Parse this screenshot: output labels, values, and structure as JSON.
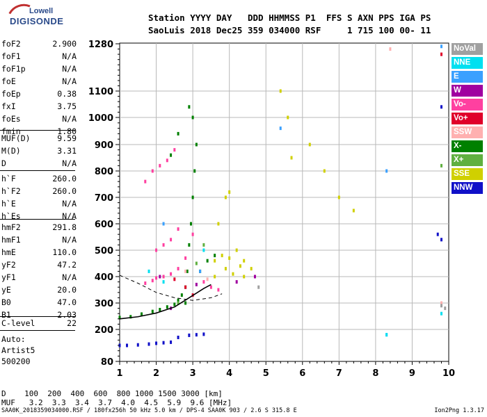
{
  "logo": {
    "line1": "Lowell",
    "line2": "DIGISONDE"
  },
  "header": {
    "row1": "Station YYYY DAY   DDD HHMMSS P1  FFS S AXN PPS IGA PS",
    "row2": "SaoLuis 2018 Dec25 359 034000 RSF     1 715 100 00- 11"
  },
  "params_a": [
    {
      "k": "foF2",
      "v": "2.900"
    },
    {
      "k": "foF1",
      "v": "N/A"
    },
    {
      "k": "foF1p",
      "v": "N/A"
    },
    {
      "k": "foE",
      "v": "N/A"
    },
    {
      "k": "foEp",
      "v": "0.38"
    },
    {
      "k": "fxI",
      "v": "3.75"
    },
    {
      "k": "foEs",
      "v": "N/A"
    },
    {
      "k": "fmin",
      "v": "1.80"
    }
  ],
  "params_b": [
    {
      "k": "MUF(D)",
      "v": "9.59"
    },
    {
      "k": "M(D)",
      "v": "3.31"
    },
    {
      "k": "D",
      "v": "N/A"
    }
  ],
  "params_c": [
    {
      "k": "h`F",
      "v": "260.0"
    },
    {
      "k": "h`F2",
      "v": "260.0"
    },
    {
      "k": "h`E",
      "v": "N/A"
    },
    {
      "k": "h`Es",
      "v": "N/A"
    }
  ],
  "params_d": [
    {
      "k": "hmF2",
      "v": "291.8"
    },
    {
      "k": "hmF1",
      "v": "N/A"
    },
    {
      "k": "hmE",
      "v": "110.0"
    },
    {
      "k": "yF2",
      "v": "47.2"
    },
    {
      "k": "yF1",
      "v": "N/A"
    },
    {
      "k": "yE",
      "v": "20.0"
    },
    {
      "k": "B0",
      "v": "47.0"
    },
    {
      "k": "B1",
      "v": "2.03"
    }
  ],
  "params_e": [
    {
      "k": "C-level",
      "v": "22"
    }
  ],
  "auto": {
    "line1": "Auto:",
    "line2": "Artist5",
    "line3": "500200"
  },
  "legend": [
    {
      "label": "NoVal",
      "color": "#a0a0a0"
    },
    {
      "label": "NNE",
      "color": "#00e0f0"
    },
    {
      "label": "E",
      "color": "#3aa0ff"
    },
    {
      "label": "W",
      "color": "#a000a0"
    },
    {
      "label": "Vo-",
      "color": "#ff40a0"
    },
    {
      "label": "Vo+",
      "color": "#e0002a"
    },
    {
      "label": "SSW",
      "color": "#ffb0b0"
    },
    {
      "label": "X-",
      "color": "#008000"
    },
    {
      "label": "X+",
      "color": "#60b040"
    },
    {
      "label": "SSE",
      "color": "#d0d000"
    },
    {
      "label": "NNW",
      "color": "#1010c8"
    }
  ],
  "dtable": {
    "row1": "D    100  200  400  600  800 1000 1500 3000 [km]",
    "row2": "MUF   3.2  3.3  3.4  3.7  4.0  4.5  5.9  9.6 [MHz]"
  },
  "footer": "SAA0K_2018359034000.RSF / 180fx256h 50 kHz 5.0 km / DPS-4 SAA0K 903 / 2.6 S 315.8 E",
  "version": "Ion2Png 1.3.17",
  "chart_data": {
    "type": "scatter",
    "title": "",
    "xlabel": "",
    "ylabel": "",
    "xlim": [
      1,
      10
    ],
    "ylim": [
      80,
      1280
    ],
    "x_ticks": [
      "1",
      "2",
      "3",
      "4",
      "5",
      "6",
      "7",
      "8",
      "9",
      "10"
    ],
    "y_ticks": [
      80,
      200,
      300,
      400,
      500,
      600,
      700,
      800,
      900,
      1000,
      1100,
      1280
    ],
    "y_tick_labels": [
      "80",
      "200",
      "300",
      "400",
      "500",
      "600",
      "700",
      "800",
      "900",
      "1000",
      "1100",
      "1280"
    ],
    "grid": true,
    "legend_placement": "right",
    "series": [
      {
        "name": "X-",
        "color": "#008000",
        "points": [
          [
            1.0,
            245
          ],
          [
            1.3,
            248
          ],
          [
            1.6,
            258
          ],
          [
            1.9,
            268
          ],
          [
            2.1,
            275
          ],
          [
            2.3,
            285
          ],
          [
            2.5,
            295
          ],
          [
            2.6,
            310
          ],
          [
            2.7,
            330
          ],
          [
            2.8,
            360
          ],
          [
            2.85,
            420
          ],
          [
            2.9,
            520
          ],
          [
            2.95,
            600
          ],
          [
            3.0,
            700
          ],
          [
            3.05,
            800
          ],
          [
            3.1,
            900
          ],
          [
            3.0,
            1000
          ],
          [
            2.8,
            300
          ],
          [
            3.2,
            420
          ],
          [
            3.4,
            460
          ],
          [
            3.6,
            480
          ],
          [
            2.4,
            860
          ],
          [
            2.6,
            940
          ],
          [
            2.9,
            1040
          ]
        ]
      },
      {
        "name": "Vo-",
        "color": "#ff40a0",
        "points": [
          [
            1.7,
            375
          ],
          [
            1.9,
            385
          ],
          [
            2.0,
            395
          ],
          [
            2.2,
            400
          ],
          [
            2.4,
            410
          ],
          [
            2.6,
            430
          ],
          [
            2.8,
            470
          ],
          [
            3.0,
            560
          ],
          [
            2.0,
            500
          ],
          [
            2.2,
            520
          ],
          [
            2.4,
            540
          ],
          [
            2.6,
            580
          ],
          [
            1.7,
            760
          ],
          [
            1.9,
            800
          ],
          [
            2.1,
            820
          ],
          [
            2.3,
            840
          ],
          [
            2.5,
            880
          ],
          [
            3.3,
            380
          ],
          [
            3.5,
            360
          ],
          [
            3.7,
            350
          ]
        ]
      },
      {
        "name": "SSE",
        "color": "#d0d000",
        "points": [
          [
            3.6,
            460
          ],
          [
            3.8,
            480
          ],
          [
            4.0,
            470
          ],
          [
            4.2,
            500
          ],
          [
            4.4,
            460
          ],
          [
            4.6,
            430
          ],
          [
            4.3,
            440
          ],
          [
            3.9,
            430
          ],
          [
            4.1,
            410
          ],
          [
            3.7,
            600
          ],
          [
            3.9,
            700
          ],
          [
            4.0,
            720
          ],
          [
            5.4,
            1100
          ],
          [
            5.6,
            1000
          ],
          [
            5.7,
            850
          ],
          [
            6.2,
            900
          ],
          [
            6.6,
            800
          ],
          [
            7.0,
            700
          ],
          [
            7.4,
            650
          ],
          [
            4.4,
            400
          ],
          [
            3.6,
            400
          ]
        ]
      },
      {
        "name": "NNW",
        "color": "#1010c8",
        "points": [
          [
            1.0,
            140
          ],
          [
            1.2,
            140
          ],
          [
            1.5,
            142
          ],
          [
            1.8,
            145
          ],
          [
            2.0,
            148
          ],
          [
            2.2,
            150
          ],
          [
            2.4,
            152
          ],
          [
            2.6,
            170
          ],
          [
            2.9,
            178
          ],
          [
            3.1,
            180
          ],
          [
            3.3,
            182
          ],
          [
            9.7,
            560
          ],
          [
            9.8,
            540
          ],
          [
            9.8,
            1040
          ]
        ]
      },
      {
        "name": "E",
        "color": "#3aa0ff",
        "points": [
          [
            2.2,
            600
          ],
          [
            3.2,
            420
          ],
          [
            5.4,
            960
          ],
          [
            8.3,
            800
          ],
          [
            9.8,
            1270
          ],
          [
            8.3,
            180
          ]
        ]
      },
      {
        "name": "NNE",
        "color": "#00e0f0",
        "points": [
          [
            1.8,
            420
          ],
          [
            2.2,
            380
          ],
          [
            3.3,
            500
          ],
          [
            8.3,
            180
          ],
          [
            9.8,
            260
          ]
        ]
      },
      {
        "name": "W",
        "color": "#a000a0",
        "points": [
          [
            2.1,
            400
          ],
          [
            2.4,
            280
          ],
          [
            3.1,
            370
          ],
          [
            4.2,
            380
          ],
          [
            4.7,
            400
          ]
        ]
      },
      {
        "name": "Vo+",
        "color": "#e0002a",
        "points": [
          [
            2.5,
            390
          ],
          [
            2.8,
            360
          ],
          [
            3.0,
            330
          ],
          [
            9.8,
            1240
          ]
        ]
      },
      {
        "name": "SSW",
        "color": "#ffb0b0",
        "points": [
          [
            2.8,
            420
          ],
          [
            3.4,
            390
          ],
          [
            8.4,
            1260
          ],
          [
            9.8,
            300
          ]
        ]
      },
      {
        "name": "X+",
        "color": "#60b040",
        "points": [
          [
            2.6,
            300
          ],
          [
            3.1,
            450
          ],
          [
            3.3,
            520
          ],
          [
            9.8,
            820
          ]
        ]
      },
      {
        "name": "NoVal",
        "color": "#a0a0a0",
        "points": [
          [
            9.8,
            290
          ],
          [
            9.9,
            280
          ],
          [
            4.8,
            360
          ]
        ]
      }
    ],
    "profile_curve": [
      [
        1.0,
        240
      ],
      [
        1.5,
        248
      ],
      [
        2.0,
        262
      ],
      [
        2.5,
        285
      ],
      [
        2.9,
        320
      ],
      [
        3.3,
        355
      ],
      [
        3.5,
        370
      ]
    ],
    "dashed_curve": [
      [
        1.0,
        405
      ],
      [
        1.5,
        375
      ],
      [
        2.0,
        340
      ],
      [
        2.5,
        320
      ],
      [
        3.0,
        310
      ],
      [
        3.5,
        320
      ],
      [
        3.8,
        335
      ]
    ]
  }
}
